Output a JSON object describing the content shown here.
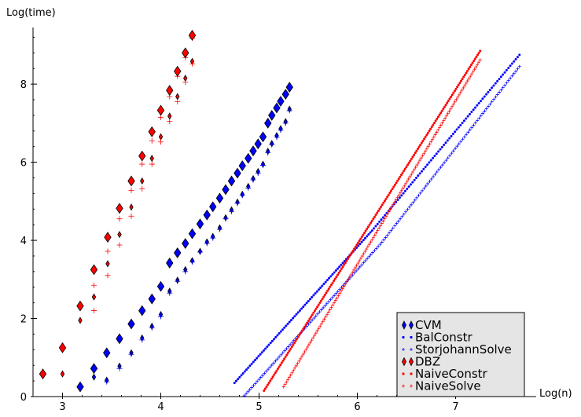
{
  "chart_data": {
    "type": "scatter",
    "title": "",
    "xlabel": "Log(n)",
    "ylabel": "Log(time)",
    "xlim": [
      2.7,
      7.7
    ],
    "ylim": [
      0,
      9.45
    ],
    "xticks": [
      3,
      4,
      5,
      6,
      7
    ],
    "yticks": [
      0,
      2,
      4,
      6,
      8
    ],
    "grid": false,
    "legend_position": "bottom-right",
    "series": [
      {
        "name": "CVM",
        "color": "#0000ff",
        "marker": "diamond-large",
        "points": [
          [
            3.18,
            0.25
          ],
          [
            3.32,
            0.72
          ],
          [
            3.45,
            1.12
          ],
          [
            3.58,
            1.48
          ],
          [
            3.7,
            1.86
          ],
          [
            3.81,
            2.2
          ],
          [
            3.91,
            2.5
          ],
          [
            4.0,
            2.82
          ],
          [
            4.09,
            3.42
          ],
          [
            4.17,
            3.68
          ],
          [
            4.25,
            3.92
          ],
          [
            4.32,
            4.17
          ],
          [
            4.4,
            4.42
          ],
          [
            4.47,
            4.65
          ],
          [
            4.53,
            4.86
          ],
          [
            4.6,
            5.08
          ],
          [
            4.66,
            5.3
          ],
          [
            4.72,
            5.52
          ],
          [
            4.78,
            5.72
          ],
          [
            4.83,
            5.91
          ],
          [
            4.89,
            6.1
          ],
          [
            4.94,
            6.29
          ],
          [
            4.99,
            6.47
          ],
          [
            5.04,
            6.65
          ],
          [
            5.09,
            7.0
          ],
          [
            5.13,
            7.2
          ],
          [
            5.18,
            7.39
          ],
          [
            5.22,
            7.56
          ],
          [
            5.27,
            7.74
          ],
          [
            5.31,
            7.92
          ]
        ]
      },
      {
        "name": "BalConstr",
        "color": "#0000ff",
        "marker": "dot",
        "line": {
          "x": [
            4.75,
            6.15,
            7.65
          ],
          "y": [
            0.35,
            4.25,
            8.75
          ],
          "n": 160
        }
      },
      {
        "name": "StorjohannSolve",
        "color": "#0000ff",
        "marker": "plus",
        "line": {
          "x": [
            4.85,
            6.25,
            7.65
          ],
          "y": [
            0.02,
            3.95,
            8.45
          ],
          "n": 150
        }
      },
      {
        "name": "DBZ",
        "color": "#ff0000",
        "marker": "diamond-large",
        "points": [
          [
            2.8,
            0.58
          ],
          [
            3.0,
            1.25
          ],
          [
            3.18,
            2.32
          ],
          [
            3.32,
            3.25
          ],
          [
            3.46,
            4.08
          ],
          [
            3.58,
            4.82
          ],
          [
            3.7,
            5.52
          ],
          [
            3.81,
            6.16
          ],
          [
            3.91,
            6.78
          ],
          [
            4.0,
            7.33
          ],
          [
            4.09,
            7.84
          ],
          [
            4.17,
            8.33
          ],
          [
            4.25,
            8.8
          ],
          [
            4.32,
            9.25
          ]
        ]
      },
      {
        "name": "NaiveConstr",
        "color": "#ff0000",
        "marker": "dot",
        "line": {
          "x": [
            5.05,
            7.25
          ],
          "y": [
            0.15,
            8.85
          ],
          "n": 170
        }
      },
      {
        "name": "NaiveSolve",
        "color": "#ff0000",
        "marker": "plus",
        "line": {
          "x": [
            5.25,
            7.25
          ],
          "y": [
            0.25,
            8.62
          ],
          "n": 140
        }
      }
    ],
    "small_diamond_series": [
      {
        "ref": "CVM",
        "color": "#000000",
        "fill": "#0000ff",
        "points": [
          [
            3.32,
            0.5
          ],
          [
            3.45,
            0.42
          ],
          [
            3.58,
            0.78
          ],
          [
            3.7,
            1.12
          ],
          [
            3.81,
            1.5
          ],
          [
            3.91,
            1.8
          ],
          [
            4.0,
            2.1
          ],
          [
            4.09,
            2.7
          ],
          [
            4.17,
            2.98
          ],
          [
            4.25,
            3.25
          ],
          [
            4.32,
            3.48
          ],
          [
            4.4,
            3.72
          ],
          [
            4.47,
            3.96
          ],
          [
            4.53,
            4.1
          ],
          [
            4.6,
            4.32
          ],
          [
            4.66,
            4.58
          ],
          [
            4.72,
            4.78
          ],
          [
            4.78,
            4.98
          ],
          [
            4.83,
            5.18
          ],
          [
            4.89,
            5.38
          ],
          [
            4.94,
            5.58
          ],
          [
            4.99,
            5.76
          ],
          [
            5.04,
            5.95
          ],
          [
            5.09,
            6.28
          ],
          [
            5.13,
            6.48
          ],
          [
            5.18,
            6.68
          ],
          [
            5.22,
            6.86
          ],
          [
            5.27,
            7.04
          ],
          [
            5.31,
            7.36
          ]
        ]
      },
      {
        "ref": "DBZ",
        "color": "#000000",
        "fill": "#ff0000",
        "points": [
          [
            3.0,
            0.58
          ],
          [
            3.18,
            1.95
          ],
          [
            3.32,
            2.55
          ],
          [
            3.46,
            3.4
          ],
          [
            3.58,
            4.15
          ],
          [
            3.7,
            4.85
          ],
          [
            3.81,
            5.52
          ],
          [
            3.91,
            6.1
          ],
          [
            4.0,
            6.65
          ],
          [
            4.09,
            7.18
          ],
          [
            4.17,
            7.68
          ],
          [
            4.25,
            8.15
          ],
          [
            4.32,
            8.58
          ]
        ]
      }
    ],
    "plus_large_series": [
      {
        "ref": "DBZ",
        "color": "#ff0000",
        "points": [
          [
            3.32,
            2.85
          ],
          [
            3.46,
            3.72
          ],
          [
            3.58,
            4.55
          ],
          [
            3.7,
            5.28
          ],
          [
            3.81,
            5.95
          ],
          [
            3.91,
            6.55
          ],
          [
            4.0,
            7.15
          ],
          [
            4.09,
            7.68
          ],
          [
            4.17,
            8.2
          ],
          [
            4.25,
            8.68
          ],
          [
            4.32,
            9.18
          ]
        ]
      },
      {
        "ref": "DBZ",
        "color": "#ff0000",
        "points": [
          [
            3.32,
            2.2
          ],
          [
            3.46,
            3.1
          ],
          [
            3.58,
            3.88
          ],
          [
            3.7,
            4.62
          ],
          [
            3.81,
            5.32
          ],
          [
            3.91,
            5.95
          ],
          [
            4.0,
            6.52
          ],
          [
            4.09,
            7.05
          ],
          [
            4.17,
            7.55
          ],
          [
            4.25,
            8.05
          ],
          [
            4.32,
            8.52
          ]
        ]
      },
      {
        "ref": "CVM",
        "color": "#0000ff",
        "points": [
          [
            3.45,
            0.38
          ],
          [
            3.58,
            0.72
          ],
          [
            3.7,
            1.08
          ],
          [
            3.81,
            1.45
          ],
          [
            3.91,
            1.76
          ],
          [
            4.0,
            2.05
          ],
          [
            4.09,
            2.65
          ],
          [
            4.17,
            2.95
          ],
          [
            4.25,
            3.2
          ],
          [
            4.32,
            3.45
          ],
          [
            4.4,
            3.7
          ],
          [
            4.47,
            3.92
          ],
          [
            4.53,
            4.06
          ],
          [
            4.6,
            4.28
          ],
          [
            4.66,
            4.55
          ],
          [
            4.72,
            4.74
          ],
          [
            4.78,
            4.95
          ],
          [
            4.83,
            5.15
          ],
          [
            4.89,
            5.34
          ],
          [
            4.94,
            5.55
          ],
          [
            4.99,
            5.72
          ],
          [
            5.04,
            5.92
          ],
          [
            5.09,
            6.24
          ],
          [
            5.13,
            6.45
          ],
          [
            5.18,
            6.64
          ],
          [
            5.22,
            6.82
          ],
          [
            5.27,
            7.0
          ],
          [
            5.31,
            7.32
          ]
        ]
      }
    ]
  }
}
